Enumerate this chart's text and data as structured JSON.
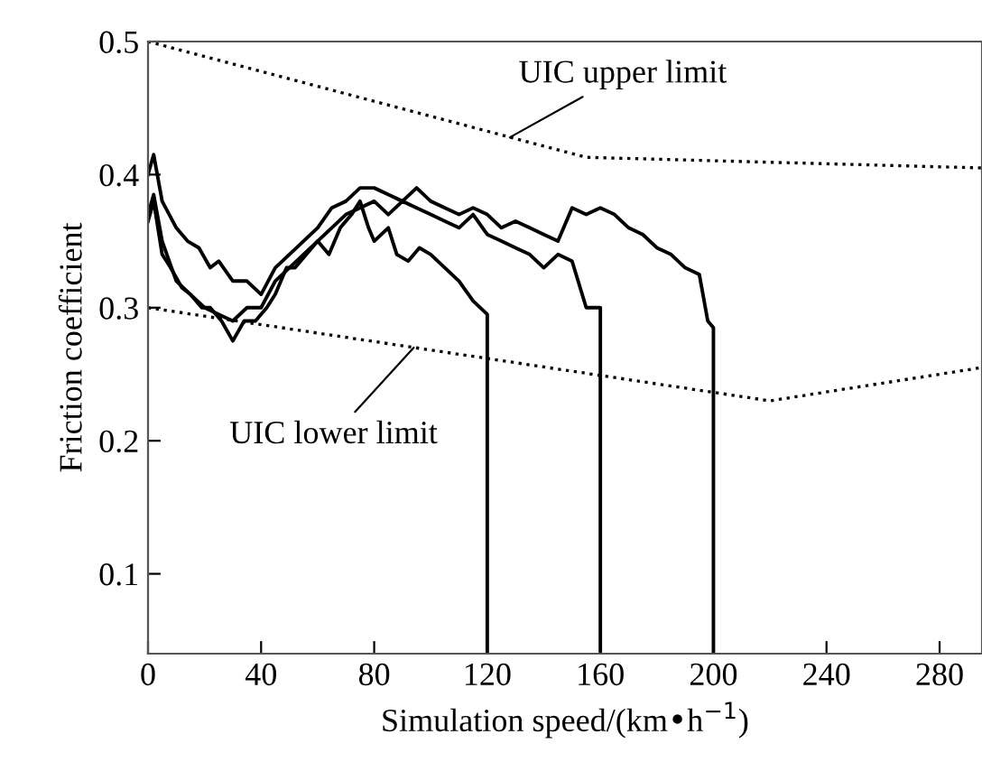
{
  "chart_data": {
    "type": "line",
    "xlabel": "Simulation speed/(km•h$^{−1}$)",
    "ylabel": "Friction coefficient",
    "xlim": [
      0,
      295
    ],
    "ylim": [
      0.04,
      0.5
    ],
    "xticks": [
      0,
      40,
      80,
      120,
      160,
      200,
      240,
      280
    ],
    "yticks": [
      0.1,
      0.2,
      0.3,
      0.4,
      0.5
    ],
    "grid": false,
    "legend": false,
    "marker": "none",
    "series": [
      {
        "color": "#000000",
        "line_style": "dotted",
        "x": [
          0,
          155,
          295
        ],
        "values": [
          0.5,
          0.413,
          0.405
        ]
      },
      {
        "color": "#000000",
        "line_style": "dotted",
        "x": [
          0,
          220,
          295
        ],
        "values": [
          0.3,
          0.23,
          0.255
        ]
      },
      {
        "color": "#000000",
        "line_style": "solid",
        "x": [
          0,
          2,
          5,
          8,
          12,
          15,
          19,
          22,
          26,
          30,
          34,
          38,
          42,
          45,
          49,
          52,
          56,
          60,
          64,
          68,
          72,
          75,
          78,
          80,
          85,
          88,
          92,
          96,
          100,
          105,
          110,
          115,
          120,
          120
        ],
        "values": [
          0.365,
          0.38,
          0.34,
          0.33,
          0.315,
          0.31,
          0.3,
          0.3,
          0.29,
          0.275,
          0.29,
          0.29,
          0.3,
          0.31,
          0.33,
          0.33,
          0.34,
          0.35,
          0.34,
          0.36,
          0.37,
          0.38,
          0.36,
          0.35,
          0.36,
          0.34,
          0.335,
          0.345,
          0.34,
          0.33,
          0.32,
          0.305,
          0.295,
          0.04
        ]
      },
      {
        "color": "#000000",
        "line_style": "solid",
        "x": [
          0,
          2,
          5,
          10,
          15,
          20,
          25,
          30,
          35,
          40,
          45,
          50,
          55,
          60,
          65,
          70,
          75,
          80,
          85,
          90,
          95,
          100,
          105,
          110,
          115,
          120,
          125,
          130,
          135,
          140,
          145,
          150,
          155,
          160,
          160
        ],
        "values": [
          0.37,
          0.385,
          0.35,
          0.32,
          0.31,
          0.3,
          0.295,
          0.29,
          0.3,
          0.3,
          0.32,
          0.33,
          0.34,
          0.35,
          0.36,
          0.37,
          0.375,
          0.38,
          0.37,
          0.38,
          0.375,
          0.37,
          0.365,
          0.36,
          0.37,
          0.355,
          0.35,
          0.345,
          0.34,
          0.33,
          0.34,
          0.335,
          0.3,
          0.3,
          0.04
        ]
      },
      {
        "color": "#000000",
        "line_style": "solid",
        "x": [
          0,
          2,
          5,
          10,
          14,
          18,
          22,
          25,
          30,
          35,
          40,
          45,
          50,
          55,
          60,
          65,
          70,
          75,
          80,
          85,
          90,
          95,
          100,
          105,
          110,
          115,
          120,
          125,
          130,
          135,
          140,
          145,
          150,
          155,
          160,
          165,
          170,
          175,
          180,
          185,
          190,
          195,
          198,
          200,
          200
        ],
        "values": [
          0.4,
          0.415,
          0.38,
          0.36,
          0.35,
          0.345,
          0.33,
          0.335,
          0.32,
          0.32,
          0.31,
          0.33,
          0.34,
          0.35,
          0.36,
          0.375,
          0.38,
          0.39,
          0.39,
          0.385,
          0.38,
          0.39,
          0.38,
          0.375,
          0.37,
          0.375,
          0.37,
          0.36,
          0.365,
          0.36,
          0.355,
          0.35,
          0.375,
          0.37,
          0.375,
          0.37,
          0.36,
          0.355,
          0.345,
          0.34,
          0.33,
          0.325,
          0.29,
          0.285,
          0.04
        ]
      }
    ],
    "annotations": [
      {
        "text": "UIC upper limit",
        "x": 128,
        "y": 0.428
      },
      {
        "text": "UIC lower limit",
        "x": 94,
        "y": 0.27
      }
    ]
  }
}
